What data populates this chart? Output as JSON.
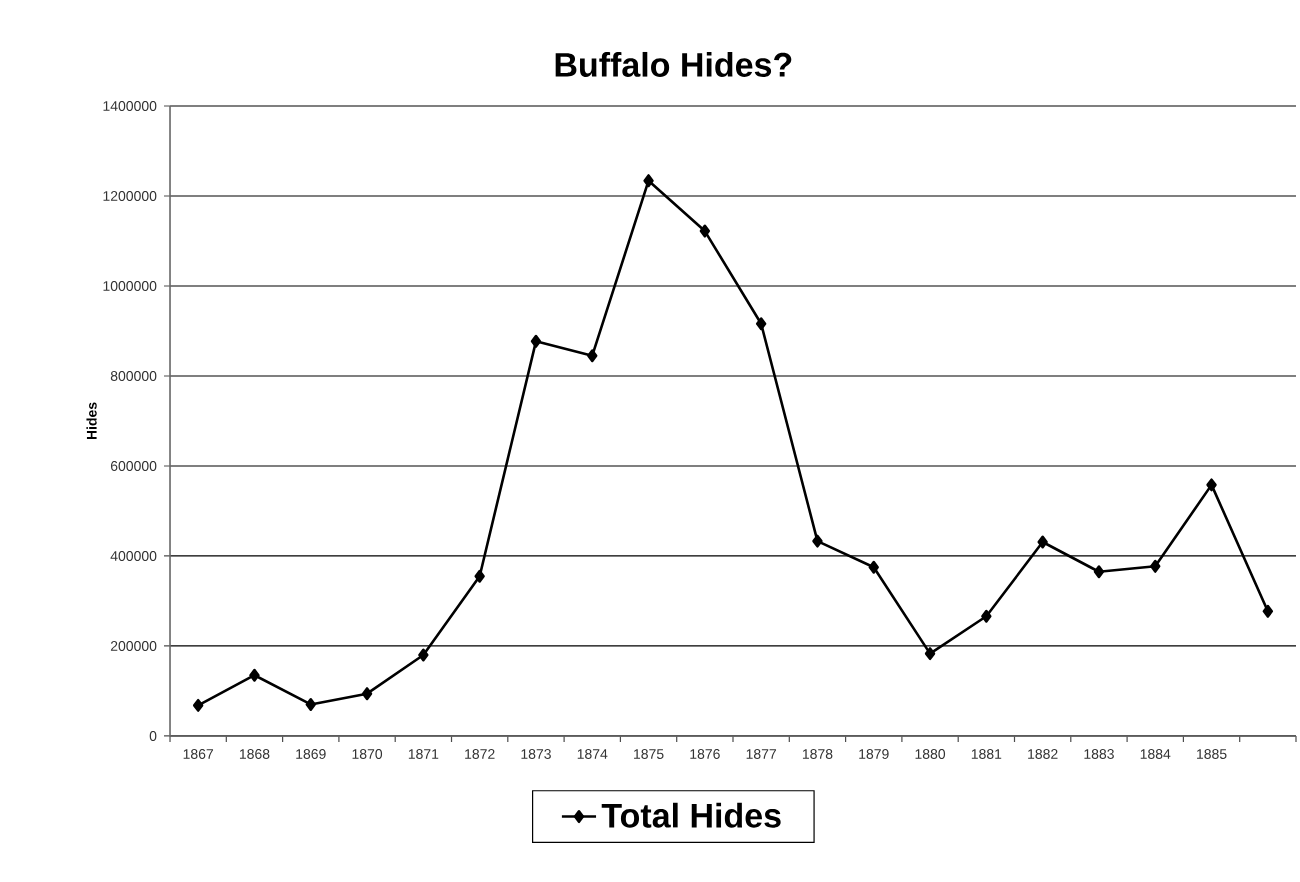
{
  "chart_data": {
    "type": "line",
    "title": "Buffalo Hides?",
    "ylabel": "Hides",
    "categories": [
      "1867",
      "1868",
      "1869",
      "1870",
      "1871",
      "1872",
      "1873",
      "1874",
      "1875",
      "1876",
      "1877",
      "1878",
      "1879",
      "1880",
      "1881",
      "1882",
      "1883",
      "1884",
      "1885",
      null
    ],
    "series": [
      {
        "name": "Total Hides",
        "color": "#000000",
        "values": [
          68000,
          135000,
          70000,
          94000,
          180000,
          355000,
          877000,
          845000,
          1234000,
          1122000,
          916000,
          433000,
          375000,
          183000,
          266000,
          431000,
          365000,
          377000,
          558000,
          277000
        ]
      }
    ],
    "ylim": [
      0,
      1400000
    ],
    "yticks": [
      0,
      200000,
      400000,
      600000,
      800000,
      1000000,
      1200000,
      1400000
    ],
    "grid": "y",
    "legend": "bottom",
    "marker": "diamond",
    "line_style": "solid"
  }
}
